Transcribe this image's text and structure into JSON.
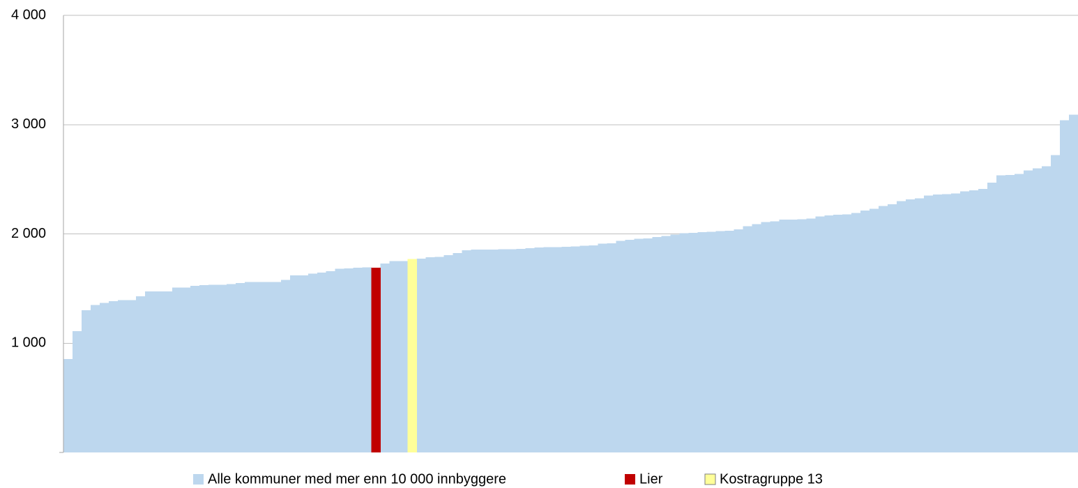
{
  "chart_data": {
    "type": "bar",
    "categories": [
      null,
      null,
      null,
      null,
      null,
      null,
      null,
      null,
      null,
      null,
      null,
      null,
      null,
      null,
      null,
      null,
      null,
      null,
      null,
      null,
      null,
      null,
      null,
      null,
      null,
      null,
      null,
      null,
      null,
      null,
      null,
      null,
      null,
      null,
      null,
      null,
      null,
      null,
      null,
      null,
      null,
      null,
      null,
      null,
      null,
      null,
      null,
      null,
      null,
      null,
      null,
      null,
      null,
      null,
      null,
      null,
      null,
      null,
      null,
      null,
      null,
      null,
      null,
      null,
      null,
      null,
      null,
      null,
      null,
      null,
      null,
      null,
      null,
      null,
      null,
      null,
      null,
      null,
      null,
      null,
      null,
      null,
      null,
      null,
      null,
      null,
      null,
      null,
      null,
      null,
      null,
      null,
      null,
      null,
      null,
      null,
      null,
      null,
      null,
      null,
      null,
      null,
      null,
      null,
      null,
      null,
      null,
      null,
      null,
      null,
      null,
      null
    ],
    "series": [
      {
        "name": "Alle kommuner med mer enn 10 000 innbyggere",
        "color": "#bdd7ee",
        "values": [
          855,
          1110,
          1300,
          1350,
          1370,
          1385,
          1395,
          1395,
          1430,
          1475,
          1475,
          1475,
          1510,
          1510,
          1525,
          1530,
          1535,
          1535,
          1540,
          1550,
          1560,
          1560,
          1560,
          1560,
          1580,
          1620,
          1620,
          1635,
          1645,
          1660,
          1680,
          1685,
          1690,
          1695,
          null,
          1730,
          1750,
          1750,
          null,
          1775,
          1785,
          1790,
          1805,
          1825,
          1850,
          1855,
          1855,
          1858,
          1860,
          1860,
          1862,
          1870,
          1875,
          1878,
          1880,
          1882,
          1885,
          1890,
          1895,
          1910,
          1915,
          1935,
          1945,
          1955,
          1960,
          1970,
          1980,
          1995,
          2005,
          2010,
          2015,
          2020,
          2025,
          2030,
          2040,
          2070,
          2090,
          2110,
          2115,
          2130,
          2130,
          2135,
          2140,
          2160,
          2170,
          2175,
          2180,
          2190,
          2215,
          2230,
          2255,
          2270,
          2300,
          2315,
          2325,
          2350,
          2360,
          2365,
          2370,
          2390,
          2400,
          2410,
          2470,
          2535,
          2540,
          2550,
          2580,
          2600,
          2620,
          2720,
          3040,
          3090
        ]
      },
      {
        "name": "Lier",
        "color": "#c00000",
        "values": [
          null,
          null,
          null,
          null,
          null,
          null,
          null,
          null,
          null,
          null,
          null,
          null,
          null,
          null,
          null,
          null,
          null,
          null,
          null,
          null,
          null,
          null,
          null,
          null,
          null,
          null,
          null,
          null,
          null,
          null,
          null,
          null,
          null,
          null,
          1690,
          null,
          null,
          null,
          null,
          null,
          null,
          null,
          null,
          null,
          null,
          null,
          null,
          null,
          null,
          null,
          null,
          null,
          null,
          null,
          null,
          null,
          null,
          null,
          null,
          null,
          null,
          null,
          null,
          null,
          null,
          null,
          null,
          null,
          null,
          null,
          null,
          null,
          null,
          null,
          null,
          null,
          null,
          null,
          null,
          null,
          null,
          null,
          null,
          null,
          null,
          null,
          null,
          null,
          null,
          null,
          null,
          null,
          null,
          null,
          null,
          null,
          null,
          null,
          null,
          null,
          null,
          null,
          null,
          null,
          null,
          null,
          null,
          null,
          null,
          null,
          null,
          null
        ]
      },
      {
        "name": "Kostragruppe 13",
        "color": "#ffff99",
        "values": [
          null,
          null,
          null,
          null,
          null,
          null,
          null,
          null,
          null,
          null,
          null,
          null,
          null,
          null,
          null,
          null,
          null,
          null,
          null,
          null,
          null,
          null,
          null,
          null,
          null,
          null,
          null,
          null,
          null,
          null,
          null,
          null,
          null,
          null,
          null,
          null,
          null,
          null,
          1770,
          null,
          null,
          null,
          null,
          null,
          null,
          null,
          null,
          null,
          null,
          null,
          null,
          null,
          null,
          null,
          null,
          null,
          null,
          null,
          null,
          null,
          null,
          null,
          null,
          null,
          null,
          null,
          null,
          null,
          null,
          null,
          null,
          null,
          null,
          null,
          null,
          null,
          null,
          null,
          null,
          null,
          null,
          null,
          null,
          null,
          null,
          null,
          null,
          null,
          null,
          null,
          null,
          null,
          null,
          null,
          null,
          null,
          null,
          null,
          null,
          null,
          null,
          null,
          null,
          null,
          null,
          null,
          null,
          null,
          null,
          null,
          null,
          null
        ]
      }
    ],
    "ylim": [
      0,
      4000
    ],
    "yticks": [
      {
        "value": 1000,
        "label": "1 000"
      },
      {
        "value": 2000,
        "label": "2 000"
      },
      {
        "value": 3000,
        "label": "3 000"
      },
      {
        "value": 4000,
        "label": "4 000"
      }
    ],
    "grid": true,
    "legend": "bottom"
  }
}
